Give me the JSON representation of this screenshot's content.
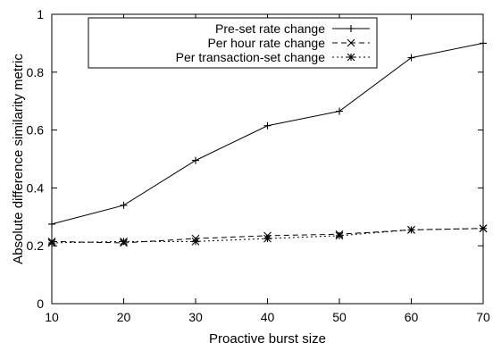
{
  "chart_data": {
    "type": "line",
    "title": "",
    "xlabel": "Proactive burst size",
    "ylabel": "Absolute difference similarity metric",
    "x": [
      10,
      20,
      30,
      40,
      50,
      60,
      70
    ],
    "xlim": [
      10,
      70
    ],
    "ylim": [
      0,
      1
    ],
    "xticks": [
      10,
      20,
      30,
      40,
      50,
      60,
      70
    ],
    "yticks": [
      0,
      0.2,
      0.4,
      0.6,
      0.8,
      1
    ],
    "grid": false,
    "legend_position": "top-left",
    "series": [
      {
        "name": "Pre-set rate change",
        "values": [
          0.275,
          0.34,
          0.495,
          0.615,
          0.665,
          0.85,
          0.9
        ],
        "line_style": "solid",
        "marker": "plus",
        "color": "#000000"
      },
      {
        "name": "Per hour rate change",
        "values": [
          0.215,
          0.21,
          0.225,
          0.235,
          0.24,
          0.255,
          0.26
        ],
        "line_style": "dashed",
        "marker": "cross",
        "color": "#000000"
      },
      {
        "name": "Per transaction-set change",
        "values": [
          0.21,
          0.215,
          0.215,
          0.225,
          0.235,
          0.255,
          0.26
        ],
        "line_style": "dotted",
        "marker": "star",
        "color": "#000000"
      }
    ]
  }
}
